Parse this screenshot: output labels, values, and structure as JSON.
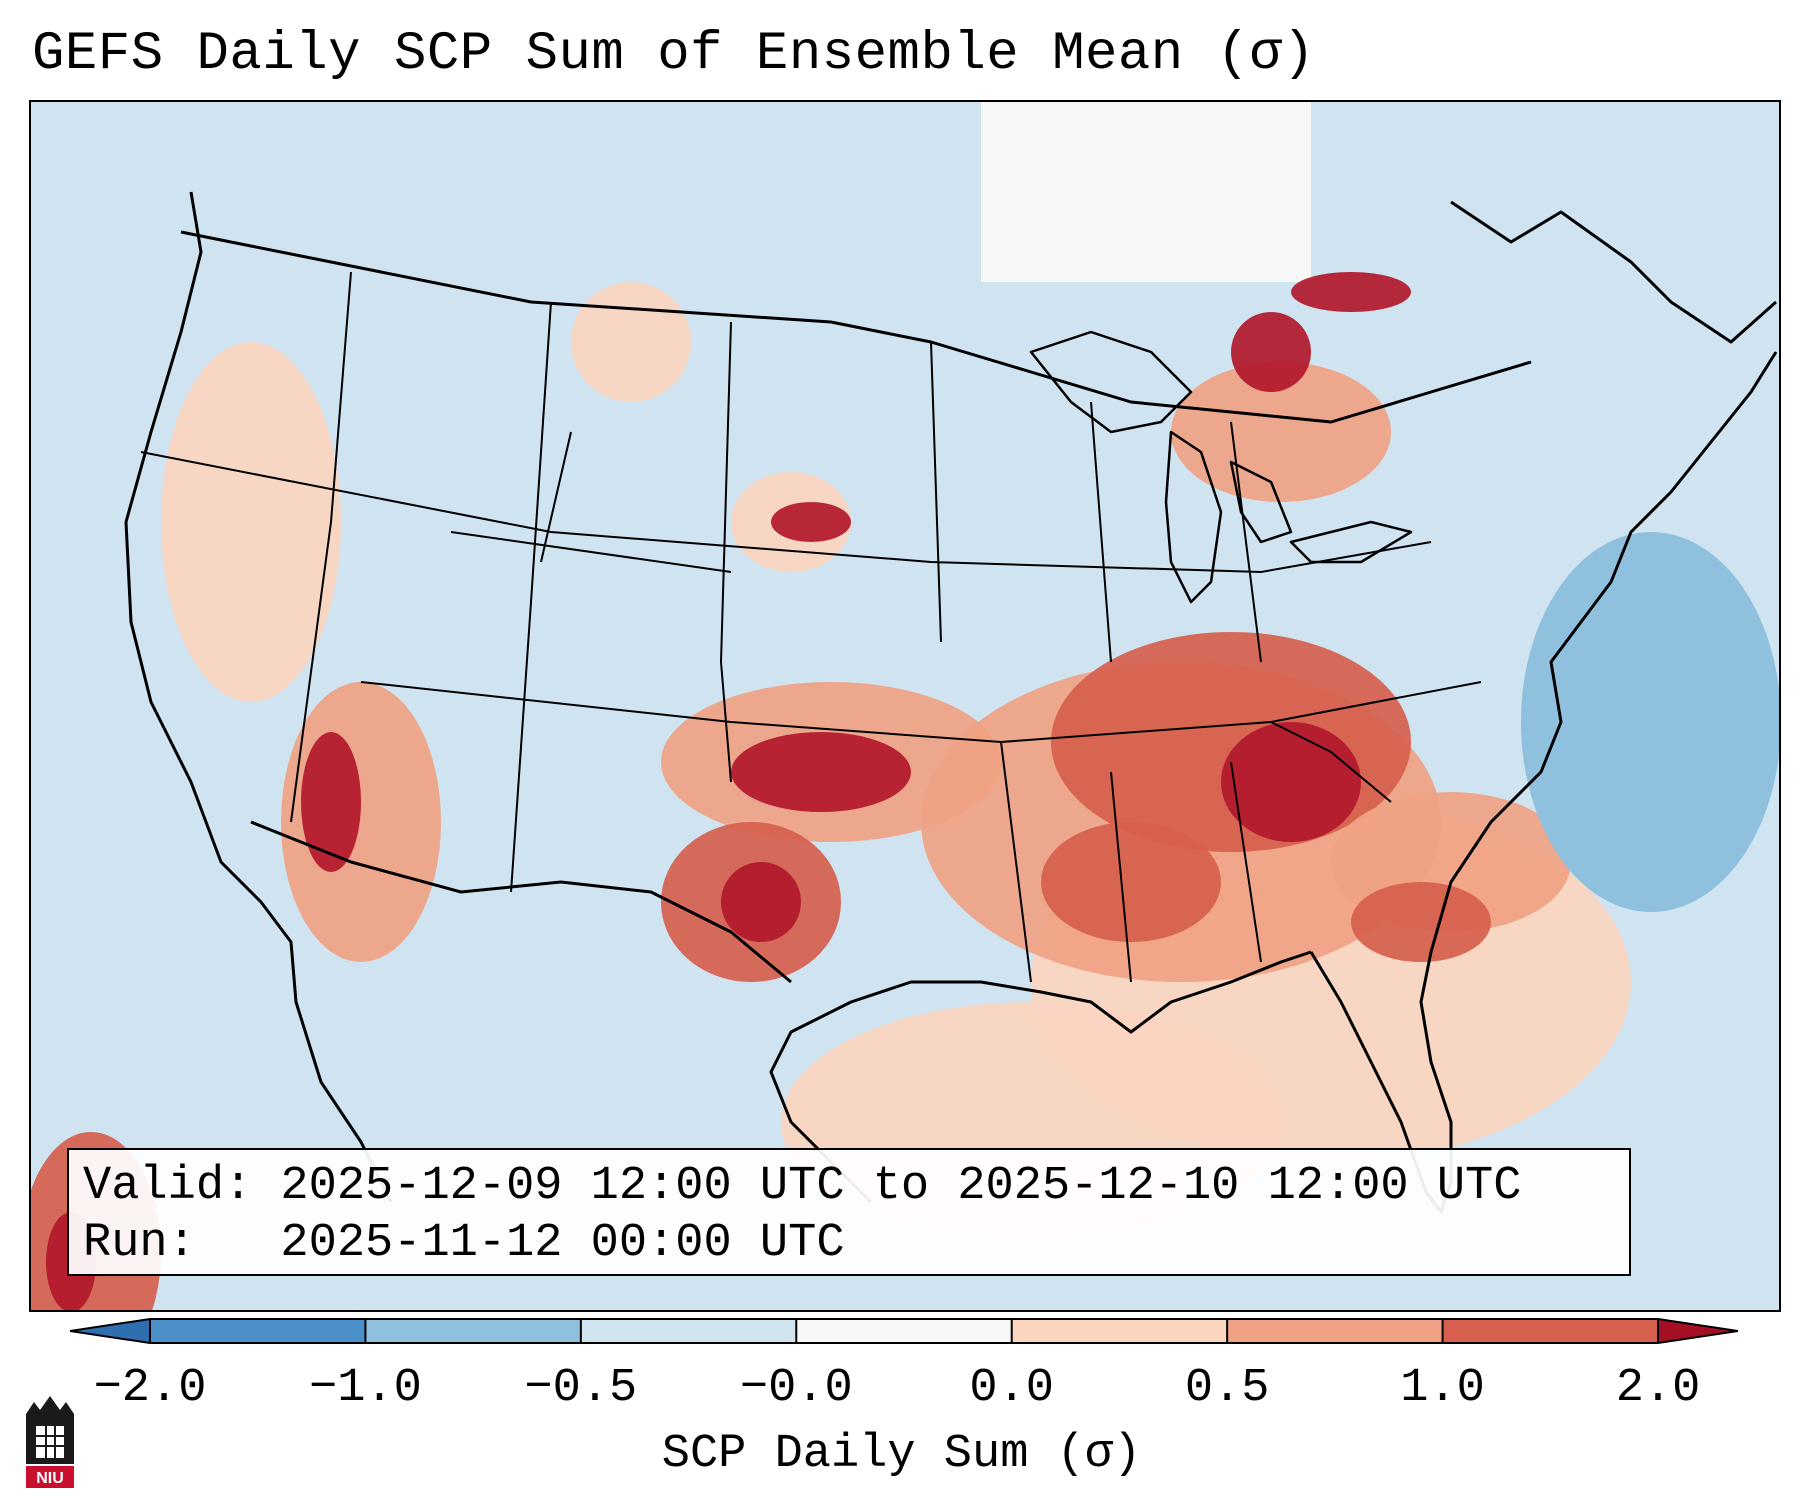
{
  "title": "GEFS Daily SCP Sum of Ensemble Mean (σ)",
  "valid_line": "Valid: 2025-12-09 12:00 UTC to 2025-12-10 12:00 UTC",
  "run_line": "Run:   2025-11-12 00:00 UTC",
  "colorbar": {
    "label": "SCP Daily Sum (σ)",
    "ticks": [
      "−2.0",
      "−1.0",
      "−0.5",
      "−0.0",
      "0.0",
      "0.5",
      "1.0",
      "2.0"
    ],
    "bin_colors": [
      "#4a8fc7",
      "#8fc1de",
      "#d1e5f0",
      "#f7f7f7",
      "#fbd5c0",
      "#f0a284",
      "#d6604d",
      "#b2182b"
    ],
    "under_color": "#2f6fb0",
    "over_color": "#a50f26"
  },
  "map": {
    "background_color": "#cfe3f0",
    "projection": "Lambert conformal, CONUS"
  },
  "logo": {
    "text": "NIU",
    "icon": "niu-logo-icon"
  }
}
